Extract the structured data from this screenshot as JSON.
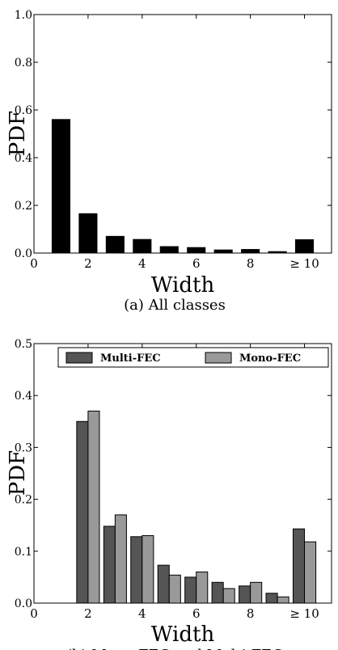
{
  "chart_data": [
    {
      "type": "bar",
      "caption": "(a) All classes",
      "xlabel": "Width",
      "ylabel": "PDF",
      "ylim": [
        0,
        1.0
      ],
      "xlim": [
        0,
        11
      ],
      "x_ticks": [
        {
          "x": 0,
          "label": "0"
        },
        {
          "x": 2,
          "label": "2"
        },
        {
          "x": 4,
          "label": "4"
        },
        {
          "x": 6,
          "label": "6"
        },
        {
          "x": 8,
          "label": "8"
        },
        {
          "x": 10,
          "label": "≥ 10"
        }
      ],
      "y_ticks": [
        "0.0",
        "0.2",
        "0.4",
        "0.6",
        "0.8",
        "1.0"
      ],
      "grid": false,
      "series": [
        {
          "color": "#000000",
          "x": [
            1,
            2,
            3,
            4,
            5,
            6,
            7,
            8,
            9,
            10
          ],
          "values": [
            0.56,
            0.165,
            0.07,
            0.057,
            0.027,
            0.023,
            0.013,
            0.015,
            0.006,
            0.056
          ]
        }
      ]
    },
    {
      "type": "bar",
      "caption": "(b) Mono-FEC and Multi-FEC",
      "xlabel": "Width",
      "ylabel": "PDF",
      "ylim": [
        0,
        0.5
      ],
      "xlim": [
        0,
        11
      ],
      "x_ticks": [
        {
          "x": 0,
          "label": "0"
        },
        {
          "x": 2,
          "label": "2"
        },
        {
          "x": 4,
          "label": "4"
        },
        {
          "x": 6,
          "label": "6"
        },
        {
          "x": 8,
          "label": "8"
        },
        {
          "x": 10,
          "label": "≥ 10"
        }
      ],
      "y_ticks": [
        "0.0",
        "0.1",
        "0.2",
        "0.3",
        "0.4",
        "0.5"
      ],
      "grid": false,
      "legend_position": "top",
      "series": [
        {
          "name": "Multi-FEC",
          "color": "#555555",
          "x": [
            2,
            3,
            4,
            5,
            6,
            7,
            8,
            9,
            10
          ],
          "values": [
            0.35,
            0.148,
            0.128,
            0.073,
            0.05,
            0.04,
            0.033,
            0.019,
            0.143
          ]
        },
        {
          "name": "Mono-FEC",
          "color": "#999999",
          "x": [
            2,
            3,
            4,
            5,
            6,
            7,
            8,
            9,
            10
          ],
          "values": [
            0.37,
            0.17,
            0.13,
            0.054,
            0.06,
            0.028,
            0.04,
            0.012,
            0.118
          ]
        }
      ]
    }
  ]
}
